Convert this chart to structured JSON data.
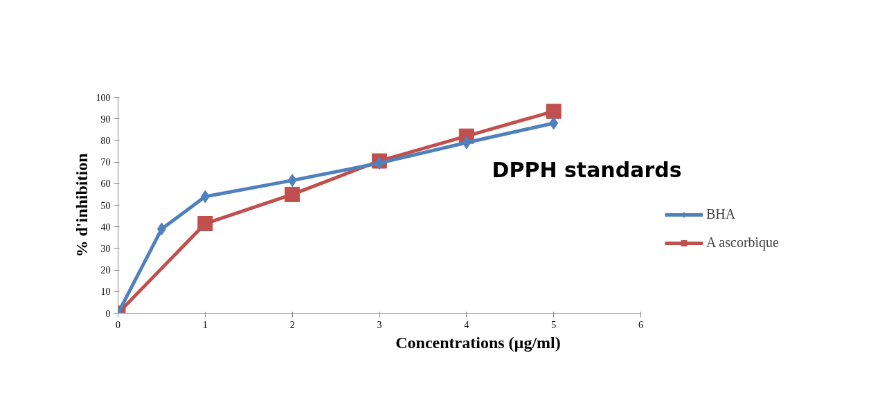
{
  "chart_data": {
    "type": "line",
    "title": "DPPH standards",
    "xlabel": "Concentrations (µg/ml)",
    "ylabel": "% d'inhibition",
    "xlim": [
      0,
      6
    ],
    "xticks": [
      0,
      1,
      2,
      3,
      4,
      5,
      6
    ],
    "ylim": [
      0,
      100
    ],
    "yticks": [
      0,
      10,
      20,
      30,
      40,
      50,
      60,
      70,
      80,
      90,
      100
    ],
    "grid": false,
    "legend": "right",
    "series": [
      {
        "name": "BHA",
        "color": "#4f81bd",
        "marker": "diamond",
        "x": [
          0,
          0.5,
          1,
          2,
          3,
          4,
          5
        ],
        "values": [
          0,
          39,
          54,
          61.5,
          69.5,
          79,
          88
        ]
      },
      {
        "name": "A ascorbique",
        "color": "#c0504d",
        "marker": "square",
        "x": [
          0,
          1,
          2,
          3,
          4,
          5
        ],
        "values": [
          0,
          41.5,
          55,
          70.5,
          82,
          93.5
        ]
      }
    ]
  }
}
